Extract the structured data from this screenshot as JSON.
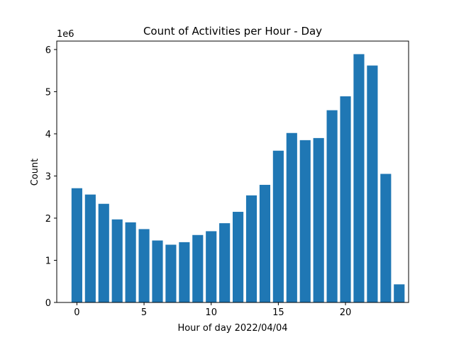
{
  "chart_data": {
    "type": "bar",
    "title": "Count of Activities per Hour - Day",
    "xlabel": "Hour of day 2022/04/04",
    "ylabel": "Count",
    "y_scale_label": "1e6",
    "x": [
      0,
      1,
      2,
      3,
      4,
      5,
      6,
      7,
      8,
      9,
      10,
      11,
      12,
      13,
      14,
      15,
      16,
      17,
      18,
      19,
      20,
      21,
      22,
      23,
      24
    ],
    "values": [
      2710000,
      2560000,
      2340000,
      1970000,
      1900000,
      1740000,
      1470000,
      1370000,
      1430000,
      1600000,
      1690000,
      1880000,
      2150000,
      2540000,
      2790000,
      3600000,
      4020000,
      3850000,
      3900000,
      4560000,
      4890000,
      5890000,
      5620000,
      3050000,
      430000
    ],
    "xlim": [
      -1.5,
      24.7
    ],
    "ylim": [
      0,
      6200000
    ],
    "x_ticks": [
      0,
      5,
      10,
      15,
      20
    ],
    "y_ticks": [
      0,
      1000000,
      2000000,
      3000000,
      4000000,
      5000000,
      6000000
    ],
    "y_tick_labels": [
      "0",
      "1",
      "2",
      "3",
      "4",
      "5",
      "6"
    ],
    "bar_color": "#1f77b4",
    "grid": false
  }
}
